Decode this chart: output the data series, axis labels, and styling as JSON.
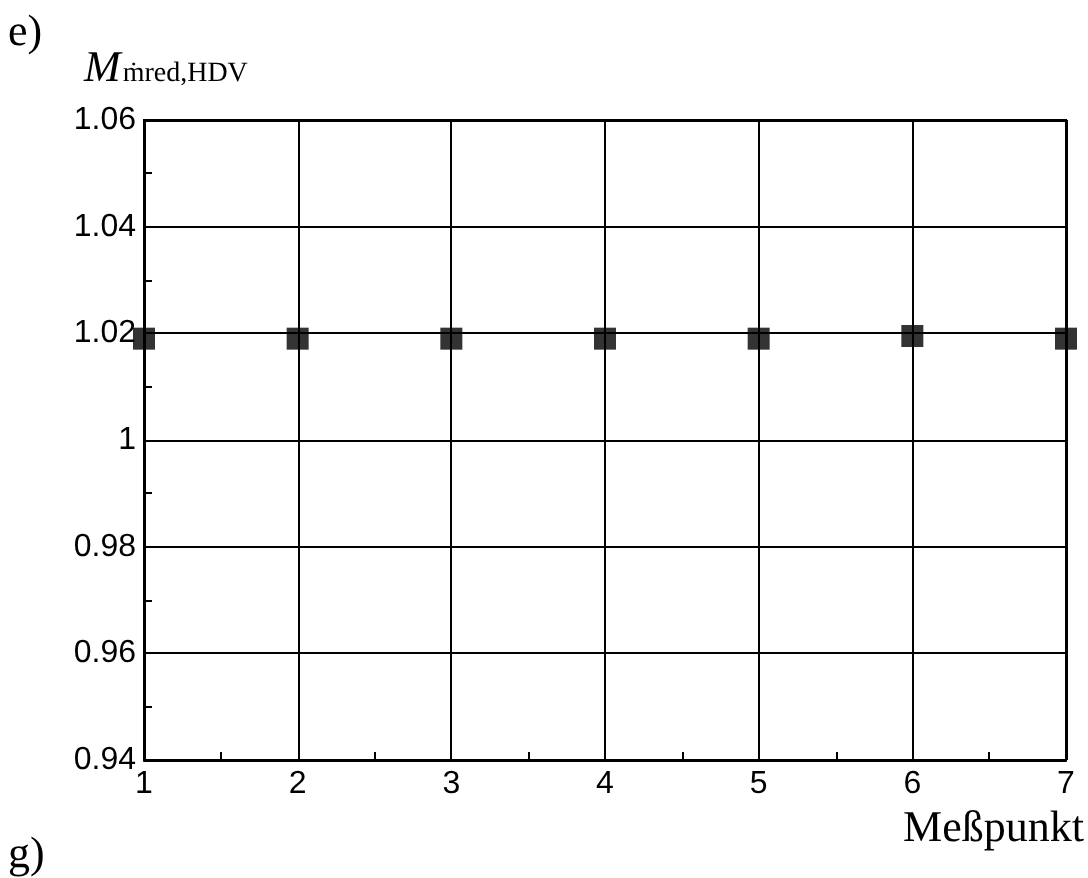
{
  "chart_data": {
    "type": "scatter",
    "ylabel": "M$_{ṁred,HDV}$",
    "xlabel": "Meßpunkt",
    "annotations": [
      "e)",
      "g)"
    ],
    "x": [
      1,
      2,
      3,
      4,
      5,
      6,
      7
    ],
    "values": [
      1.019,
      1.019,
      1.019,
      1.019,
      1.019,
      1.0195,
      1.019
    ],
    "color": "#000000",
    "marker": "square",
    "grid": true,
    "xlim": [
      1,
      7
    ],
    "xticks": [
      1,
      2,
      3,
      4,
      5,
      6,
      7
    ],
    "ylim": [
      0.94,
      1.06
    ],
    "yticks": [
      0.94,
      0.96,
      0.98,
      1,
      1.02,
      1.04,
      1.06
    ]
  }
}
